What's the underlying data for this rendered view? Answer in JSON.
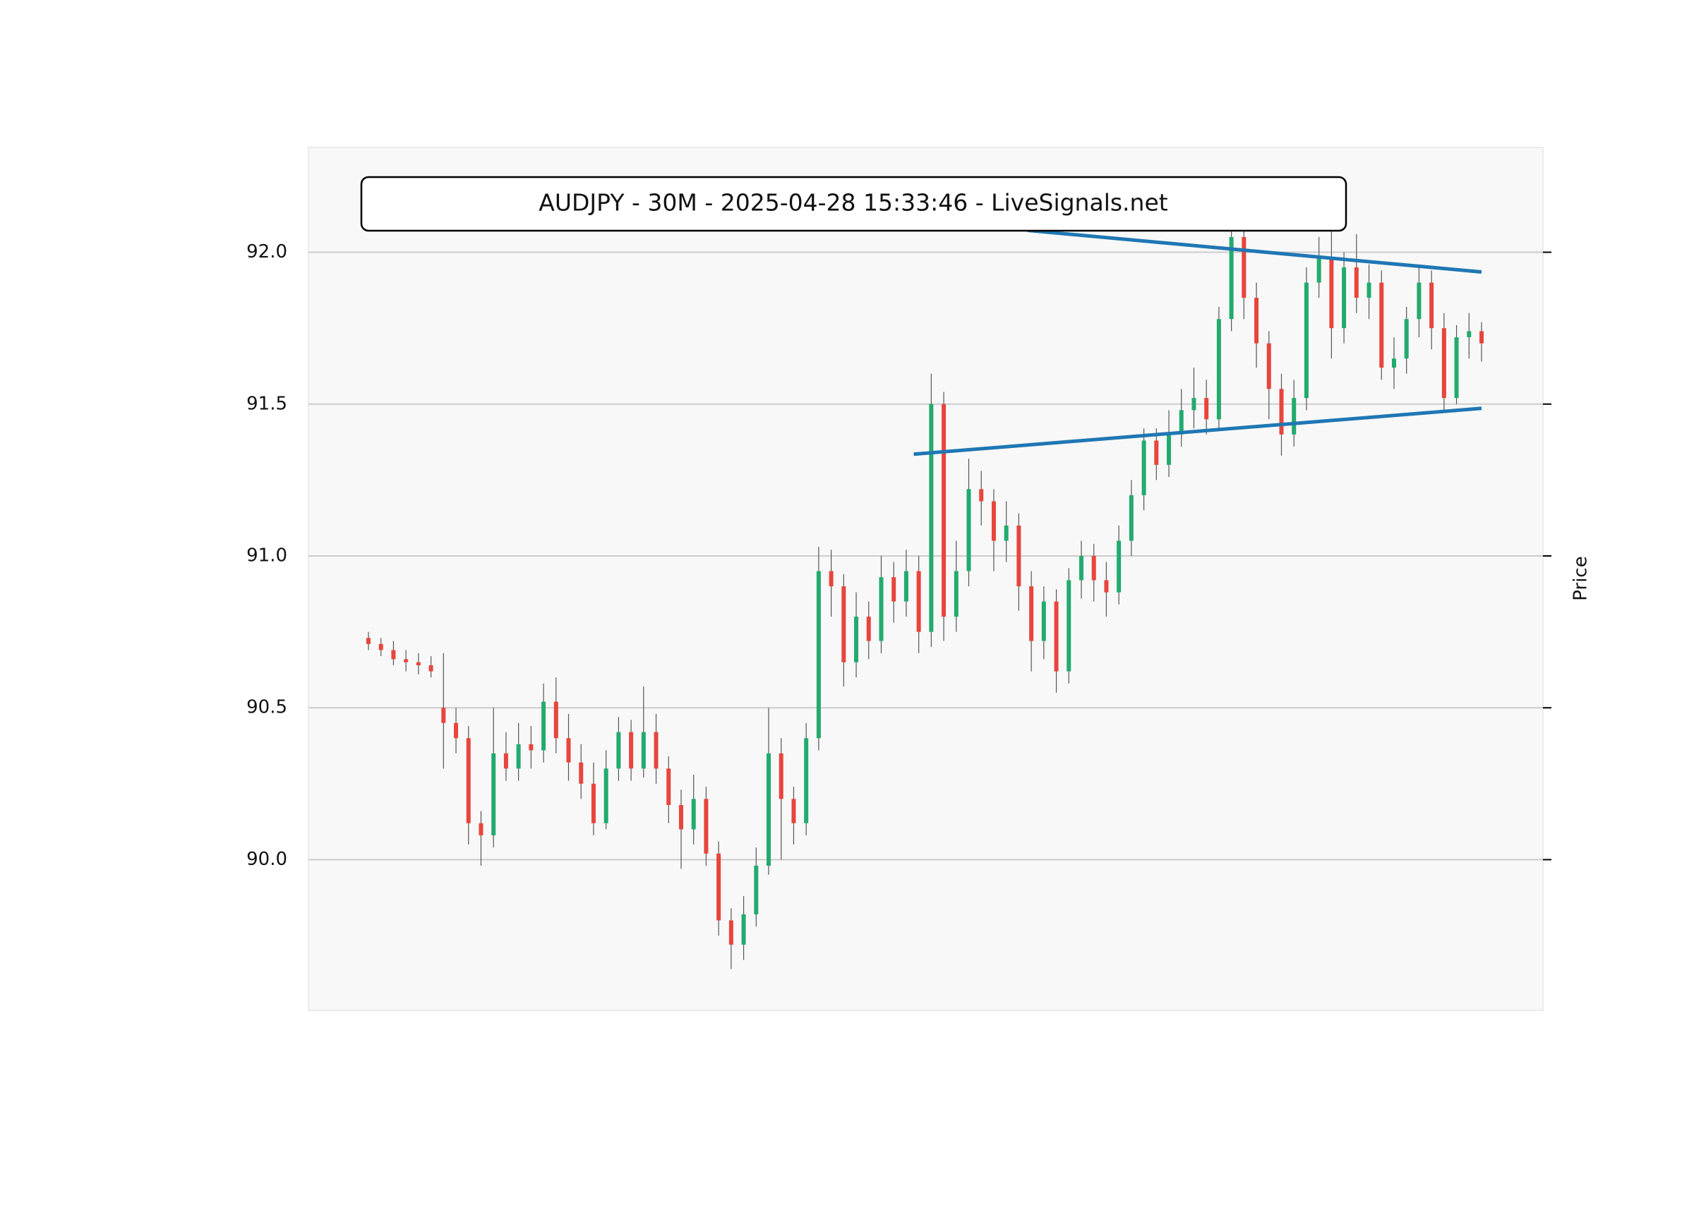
{
  "chart_data": {
    "type": "candlestick",
    "title": "AUDJPY - 30M - 2025-04-28 15:33:46 - LiveSignals.net",
    "y_label": "Price",
    "up_color": "#22ab6e",
    "down_color": "#e8453c",
    "wick_color": "#555555",
    "grid": true,
    "ylim": [
      89.504,
      92.345
    ],
    "yticks": [
      {
        "value": 90,
        "label": "90.0"
      },
      {
        "value": 90.5,
        "label": "90.5"
      },
      {
        "value": 91,
        "label": "91.0"
      },
      {
        "value": 91.5,
        "label": "91.5"
      },
      {
        "value": 92,
        "label": "92.0"
      }
    ],
    "open": [
      90.73,
      90.71,
      90.69,
      90.66,
      90.65,
      90.64,
      90.5,
      90.45,
      90.4,
      90.12,
      90.08,
      90.35,
      90.3,
      90.38,
      90.36,
      90.52,
      90.4,
      90.32,
      90.25,
      90.12,
      90.3,
      90.42,
      90.3,
      90.42,
      90.3,
      90.18,
      90.1,
      90.2,
      90.02,
      89.8,
      89.72,
      89.82,
      89.98,
      90.35,
      90.2,
      90.12,
      90.4,
      90.95,
      90.9,
      90.65,
      90.8,
      90.72,
      90.93,
      90.85,
      90.95,
      90.75,
      91.5,
      90.8,
      90.95,
      91.22,
      91.18,
      91.05,
      91.1,
      90.9,
      90.72,
      90.85,
      90.62,
      90.92,
      91.0,
      90.92,
      90.88,
      91.05,
      91.2,
      91.38,
      91.3,
      91.4,
      91.48,
      91.52,
      91.45,
      91.78,
      92.05,
      91.85,
      91.7,
      91.55,
      91.4,
      91.52,
      91.9,
      91.98,
      91.75,
      91.95,
      91.85,
      91.9,
      91.62,
      91.65,
      91.78,
      91.9,
      91.75,
      91.52,
      91.72,
      91.74
    ],
    "high": [
      90.75,
      90.73,
      90.72,
      90.69,
      90.68,
      90.67,
      90.68,
      90.5,
      90.44,
      90.16,
      90.5,
      90.42,
      90.45,
      90.44,
      90.58,
      90.6,
      90.48,
      90.38,
      90.32,
      90.36,
      90.47,
      90.46,
      90.57,
      90.48,
      90.34,
      90.23,
      90.28,
      90.24,
      90.06,
      89.84,
      89.88,
      90.04,
      90.5,
      90.4,
      90.24,
      90.45,
      91.03,
      91.02,
      90.94,
      90.88,
      90.85,
      91.0,
      90.98,
      91.02,
      91.0,
      91.6,
      91.54,
      91.05,
      91.32,
      91.28,
      91.22,
      91.18,
      91.14,
      90.95,
      90.9,
      90.89,
      90.96,
      91.05,
      91.04,
      90.98,
      91.1,
      91.25,
      91.42,
      91.42,
      91.48,
      91.55,
      91.62,
      91.58,
      91.82,
      92.12,
      92.1,
      91.9,
      91.74,
      91.6,
      91.58,
      91.95,
      92.05,
      92.08,
      92.0,
      92.06,
      91.96,
      91.94,
      91.72,
      91.82,
      91.95,
      91.94,
      91.8,
      91.76,
      91.8,
      91.77
    ],
    "low": [
      90.69,
      90.67,
      90.64,
      90.62,
      90.61,
      90.6,
      90.3,
      90.35,
      90.05,
      89.98,
      90.04,
      90.26,
      90.26,
      90.3,
      90.32,
      90.35,
      90.26,
      90.2,
      90.08,
      90.1,
      90.26,
      90.26,
      90.27,
      90.25,
      90.12,
      89.97,
      90.05,
      89.98,
      89.75,
      89.64,
      89.67,
      89.78,
      89.95,
      90.0,
      90.05,
      90.08,
      90.36,
      90.8,
      90.57,
      90.6,
      90.66,
      90.68,
      90.78,
      90.8,
      90.68,
      90.7,
      90.72,
      90.75,
      90.9,
      91.1,
      90.95,
      90.98,
      90.82,
      90.62,
      90.66,
      90.55,
      90.58,
      90.86,
      90.85,
      90.8,
      90.84,
      91.0,
      91.15,
      91.25,
      91.26,
      91.36,
      91.42,
      91.4,
      91.42,
      91.74,
      91.78,
      91.62,
      91.45,
      91.33,
      91.36,
      91.48,
      91.85,
      91.65,
      91.7,
      91.8,
      91.78,
      91.58,
      91.55,
      91.6,
      91.72,
      91.68,
      91.48,
      91.5,
      91.65,
      91.64
    ],
    "close": [
      90.71,
      90.69,
      90.66,
      90.65,
      90.64,
      90.62,
      90.45,
      90.4,
      90.12,
      90.08,
      90.35,
      90.3,
      90.38,
      90.36,
      90.52,
      90.4,
      90.32,
      90.25,
      90.12,
      90.3,
      90.42,
      90.3,
      90.42,
      90.3,
      90.18,
      90.1,
      90.2,
      90.02,
      89.8,
      89.72,
      89.82,
      89.98,
      90.35,
      90.2,
      90.12,
      90.4,
      90.95,
      90.9,
      90.65,
      90.8,
      90.72,
      90.93,
      90.85,
      90.95,
      90.75,
      91.5,
      90.8,
      90.95,
      91.22,
      91.18,
      91.05,
      91.1,
      90.9,
      90.72,
      90.85,
      90.62,
      90.92,
      91.0,
      90.92,
      90.88,
      91.05,
      91.2,
      91.38,
      91.3,
      91.4,
      91.48,
      91.52,
      91.45,
      91.78,
      92.05,
      91.85,
      91.7,
      91.55,
      91.4,
      91.52,
      91.9,
      91.98,
      91.75,
      91.95,
      91.85,
      91.9,
      91.62,
      91.65,
      91.78,
      91.9,
      91.75,
      91.52,
      91.72,
      91.74,
      91.7
    ],
    "trendlines": [
      {
        "color": "#1f77b4",
        "x": [
          52.7,
          89
        ],
        "y": [
          92.072,
          91.935
        ]
      },
      {
        "color": "#1f77b4",
        "x": [
          43.6,
          89
        ],
        "y": [
          91.335,
          91.486
        ]
      }
    ]
  }
}
